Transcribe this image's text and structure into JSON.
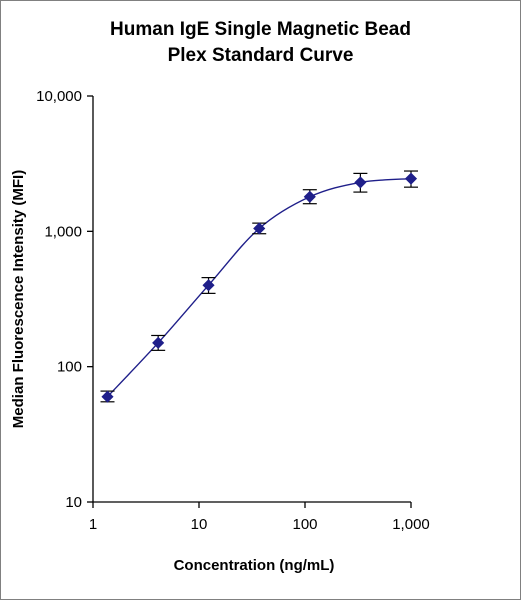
{
  "chart_data": {
    "type": "scatter",
    "title_lines": [
      "Human IgE Single Magnetic Bead",
      "Plex Standard Curve"
    ],
    "xlabel": "Concentration (ng/mL)",
    "ylabel": "Median Fluorescence Intensity (MFI)",
    "x_scale": "log",
    "y_scale": "log",
    "xlim": [
      1,
      1000
    ],
    "ylim": [
      10,
      10000
    ],
    "x_ticks": [
      {
        "value": 1,
        "label": "1"
      },
      {
        "value": 10,
        "label": "10"
      },
      {
        "value": 100,
        "label": "100"
      },
      {
        "value": 1000,
        "label": "1,000"
      }
    ],
    "y_ticks": [
      {
        "value": 10,
        "label": "10"
      },
      {
        "value": 100,
        "label": "100"
      },
      {
        "value": 1000,
        "label": "1,000"
      },
      {
        "value": 10000,
        "label": "10,000"
      }
    ],
    "grid": false,
    "legend": "none",
    "marker": "diamond",
    "series_color": "#1f1f8a",
    "error_bar_color": "#000000",
    "x": [
      1.37,
      4.12,
      12.3,
      37.0,
      111,
      333,
      1000
    ],
    "y": [
      60,
      150,
      400,
      1050,
      1800,
      2300,
      2450
    ],
    "y_err_low": [
      55,
      132,
      348,
      960,
      1600,
      1950,
      2120
    ],
    "y_err_high": [
      66,
      170,
      455,
      1150,
      2030,
      2680,
      2790
    ],
    "fit_curve": true
  }
}
